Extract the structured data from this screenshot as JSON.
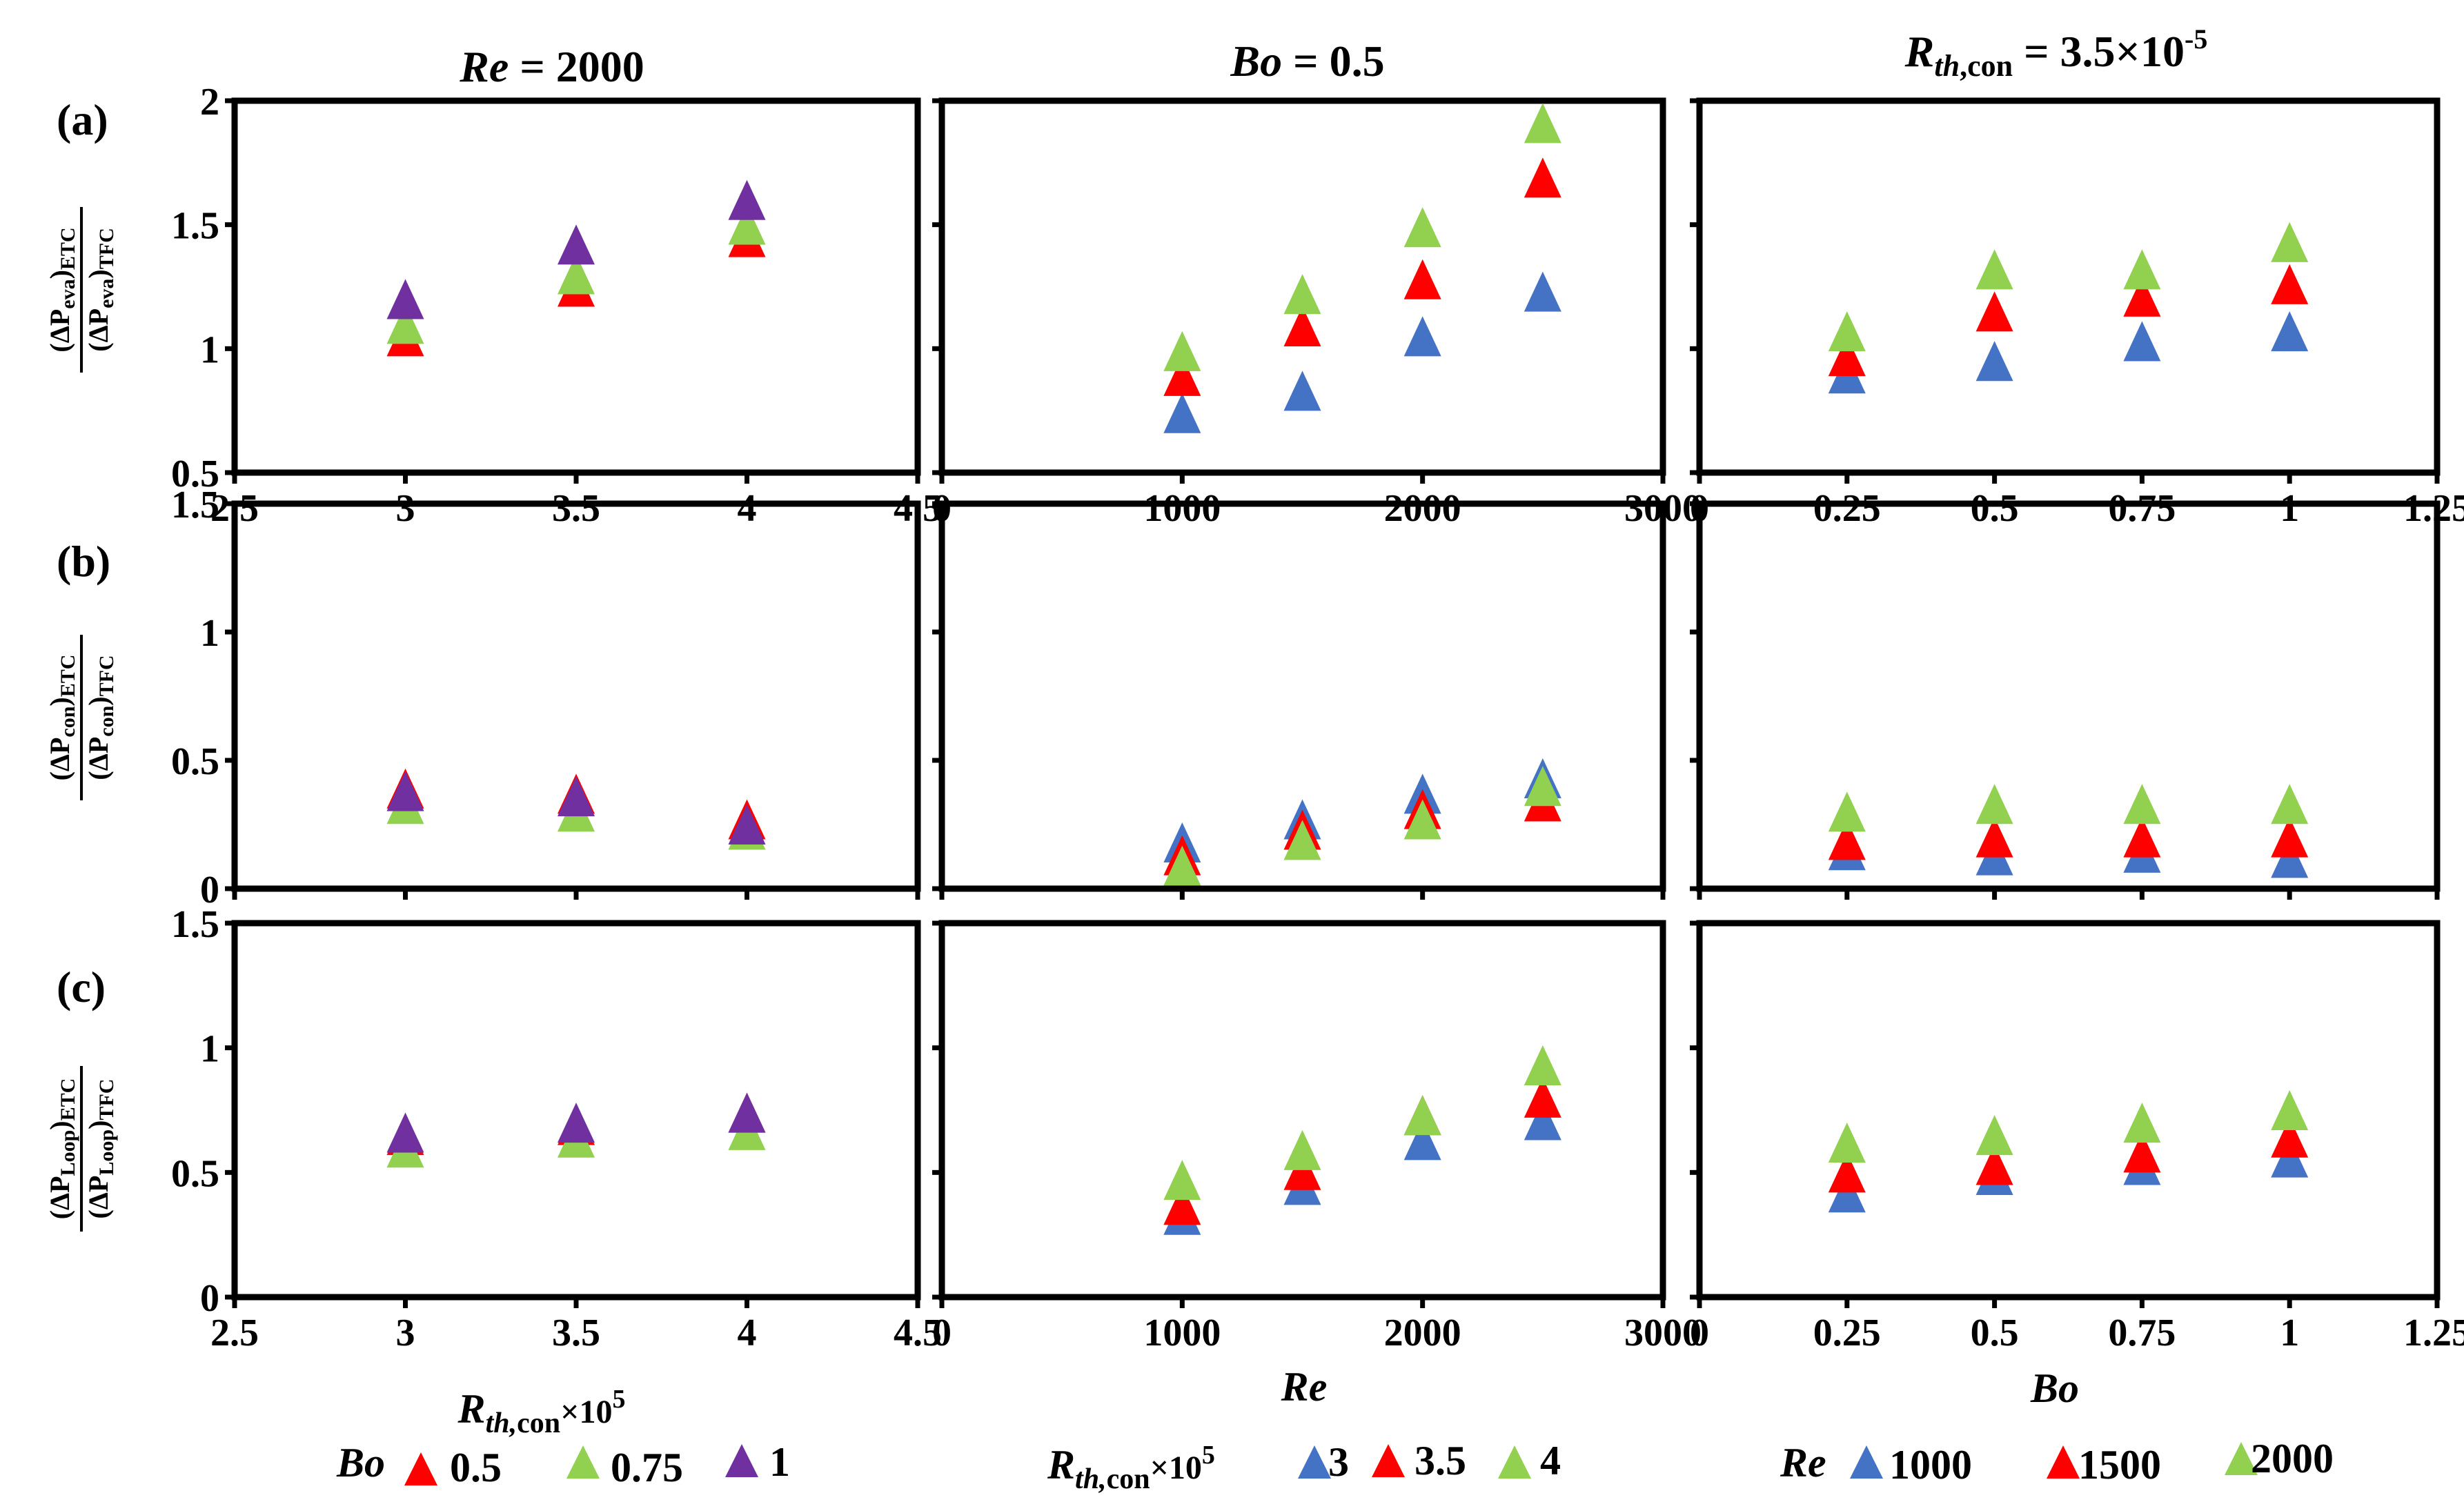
{
  "colors": {
    "red": "#ff0000",
    "green": "#92d050",
    "purple": "#7030a0",
    "blue": "#4472c4"
  },
  "column_titles": [
    {
      "var": "Re",
      "rest": " = 2000"
    },
    {
      "var": "Bo",
      "rest": " = 0.5"
    },
    {
      "var": "R",
      "sub": "th",
      "sub2": ",con",
      "rest": " = 3.5×10",
      "sup": "-5"
    }
  ],
  "row_labels": [
    "(a)",
    "(b)",
    "(c)"
  ],
  "row_ylabels": [
    {
      "num_pre": "(ΔP",
      "num_sub": "eva",
      "num_post": ")",
      "num_tail": "ETC",
      "den_pre": "(ΔP",
      "den_sub": "eva",
      "den_post": ")",
      "den_tail": "TFC"
    },
    {
      "num_pre": "(ΔP",
      "num_sub": "con",
      "num_post": ")",
      "num_tail": "ETC",
      "den_pre": "(ΔP",
      "den_sub": "con",
      "den_post": ")",
      "den_tail": "TFC"
    },
    {
      "num_pre": "(ΔP",
      "num_sub": "Loop",
      "num_post": ")",
      "num_tail": "ETC",
      "den_pre": "(ΔP",
      "den_sub": "Loop",
      "den_post": ")",
      "den_tail": "TFC"
    }
  ],
  "x_axis_labels": [
    {
      "main": "R",
      "sub": "th,",
      "sub2": "con",
      "post": "×10",
      "sup": "5"
    },
    {
      "main": "Re"
    },
    {
      "main": "Bo"
    }
  ],
  "legends": [
    {
      "title": "Bo",
      "items": [
        "0.5",
        "0.75",
        "1"
      ]
    },
    {
      "title": "R",
      "title_sub": "th,",
      "title_sub2": "con",
      "title_post": "×10",
      "title_sup": "5",
      "items": [
        "3",
        "3.5",
        "4"
      ]
    },
    {
      "title": "Re",
      "items": [
        "1000",
        "1500",
        "2000"
      ]
    }
  ],
  "chart_data": [
    {
      "type": "scatter",
      "row": "(a)",
      "column": 1,
      "xlim": [
        2.5,
        4.5
      ],
      "ylim": [
        0.5,
        2
      ],
      "xticks": [
        2.5,
        3,
        3.5,
        4,
        4.5
      ],
      "xtick_labels": [
        "2.5",
        "3",
        "3.5",
        "4",
        "4.5"
      ],
      "yticks": [
        0.5,
        1,
        1.5,
        2
      ],
      "ytick_labels": [
        "0.5",
        "1",
        "1.5",
        "2"
      ],
      "series": [
        {
          "name": "0.5",
          "color": "red",
          "x": [
            3,
            3.5,
            4
          ],
          "y": [
            1.05,
            1.25,
            1.45
          ]
        },
        {
          "name": "0.75",
          "color": "green",
          "x": [
            3,
            3.5,
            4
          ],
          "y": [
            1.1,
            1.3,
            1.5
          ]
        },
        {
          "name": "1",
          "color": "purple",
          "x": [
            3,
            3.5,
            4
          ],
          "y": [
            1.2,
            1.42,
            1.6
          ]
        }
      ]
    },
    {
      "type": "scatter",
      "row": "(a)",
      "column": 2,
      "xlim": [
        0,
        3000
      ],
      "ylim": [
        0.5,
        2
      ],
      "xticks": [
        0,
        1000,
        2000,
        3000
      ],
      "xtick_labels": [
        "0",
        "1000",
        "2000",
        "3000"
      ],
      "yticks": [
        0.5,
        1,
        1.5,
        2
      ],
      "ytick_labels": [],
      "series": [
        {
          "name": "3",
          "color": "blue",
          "x": [
            1000,
            1500,
            2000,
            2500
          ],
          "y": [
            0.74,
            0.83,
            1.05,
            1.23
          ]
        },
        {
          "name": "3.5",
          "color": "red",
          "x": [
            1000,
            1500,
            2000,
            2500
          ],
          "y": [
            0.89,
            1.09,
            1.28,
            1.69
          ]
        },
        {
          "name": "4",
          "color": "green",
          "x": [
            1000,
            1500,
            2000,
            2500
          ],
          "y": [
            0.99,
            1.22,
            1.49,
            1.91
          ]
        }
      ]
    },
    {
      "type": "scatter",
      "row": "(a)",
      "column": 3,
      "xlim": [
        0,
        1.25
      ],
      "ylim": [
        0.5,
        2
      ],
      "xticks": [
        0,
        0.25,
        0.5,
        0.75,
        1,
        1.25
      ],
      "xtick_labels": [
        "0",
        "0.25",
        "0.5",
        "0.75",
        "1",
        "1.25"
      ],
      "yticks": [
        0.5,
        1,
        1.5,
        2
      ],
      "ytick_labels": [],
      "series": [
        {
          "name": "1000",
          "color": "blue",
          "x": [
            0.25,
            0.5,
            0.75,
            1
          ],
          "y": [
            0.9,
            0.95,
            1.03,
            1.07
          ]
        },
        {
          "name": "1500",
          "color": "red",
          "x": [
            0.25,
            0.5,
            0.75,
            1
          ],
          "y": [
            0.97,
            1.15,
            1.21,
            1.26
          ]
        },
        {
          "name": "2000",
          "color": "green",
          "x": [
            0.25,
            0.5,
            0.75,
            1
          ],
          "y": [
            1.07,
            1.32,
            1.32,
            1.43
          ]
        }
      ]
    },
    {
      "type": "scatter",
      "row": "(b)",
      "column": 1,
      "xlim": [
        2.5,
        4.5
      ],
      "ylim": [
        0,
        1.5
      ],
      "xticks": [
        2.5,
        3,
        3.5,
        4,
        4.5
      ],
      "xtick_labels": [],
      "yticks": [
        0,
        0.5,
        1,
        1.5
      ],
      "ytick_labels": [
        "0",
        "0.5",
        "1",
        "1.5"
      ],
      "series": [
        {
          "name": "0.5",
          "color": "red",
          "x": [
            3,
            3.5,
            4
          ],
          "y": [
            0.39,
            0.37,
            0.27
          ]
        },
        {
          "name": "0.75",
          "color": "green",
          "x": [
            3,
            3.5,
            4
          ],
          "y": [
            0.33,
            0.3,
            0.23
          ]
        },
        {
          "name": "1",
          "color": "purple",
          "x": [
            3,
            3.5,
            4
          ],
          "y": [
            0.38,
            0.36,
            0.25
          ]
        }
      ]
    },
    {
      "type": "scatter",
      "row": "(b)",
      "column": 2,
      "xlim": [
        0,
        3000
      ],
      "ylim": [
        0,
        1.5
      ],
      "xticks": [
        0,
        1000,
        2000,
        3000
      ],
      "xtick_labels": [],
      "yticks": [
        0,
        0.5,
        1,
        1.5
      ],
      "ytick_labels": [],
      "series": [
        {
          "name": "3",
          "color": "blue",
          "x": [
            1000,
            1500,
            2000,
            2500
          ],
          "y": [
            0.18,
            0.27,
            0.37,
            0.43
          ]
        },
        {
          "name": "3.5",
          "color": "red",
          "x": [
            1000,
            1500,
            2000,
            2500
          ],
          "y": [
            0.13,
            0.23,
            0.31,
            0.34
          ]
        },
        {
          "name": "4",
          "color": "green",
          "x": [
            1000,
            1500,
            2000,
            2500
          ],
          "y": [
            0.09,
            0.19,
            0.27,
            0.4
          ]
        }
      ]
    },
    {
      "type": "scatter",
      "row": "(b)",
      "column": 3,
      "xlim": [
        0,
        1.25
      ],
      "ylim": [
        0,
        1.5
      ],
      "xticks": [
        0,
        0.25,
        0.5,
        0.75,
        1,
        1.25
      ],
      "xtick_labels": [],
      "yticks": [
        0,
        0.5,
        1,
        1.5
      ],
      "ytick_labels": [],
      "series": [
        {
          "name": "1000",
          "color": "blue",
          "x": [
            0.25,
            0.5,
            0.75,
            1
          ],
          "y": [
            0.15,
            0.13,
            0.14,
            0.12
          ]
        },
        {
          "name": "1500",
          "color": "red",
          "x": [
            0.25,
            0.5,
            0.75,
            1
          ],
          "y": [
            0.19,
            0.2,
            0.2,
            0.2
          ]
        },
        {
          "name": "2000",
          "color": "green",
          "x": [
            0.25,
            0.5,
            0.75,
            1
          ],
          "y": [
            0.3,
            0.33,
            0.33,
            0.33
          ]
        }
      ]
    },
    {
      "type": "scatter",
      "row": "(c)",
      "column": 1,
      "xlim": [
        2.5,
        4.5
      ],
      "ylim": [
        0,
        1.5
      ],
      "xticks": [
        2.5,
        3,
        3.5,
        4,
        4.5
      ],
      "xtick_labels": [
        "2.5",
        "3",
        "3.5",
        "4",
        "4.5"
      ],
      "yticks": [
        0,
        0.5,
        1,
        1.5
      ],
      "ytick_labels": [
        "0",
        "0.5",
        "1",
        "1.5"
      ],
      "series": [
        {
          "name": "0.5",
          "color": "red",
          "x": [
            3,
            3.5,
            4
          ],
          "y": [
            0.65,
            0.69,
            0.74
          ]
        },
        {
          "name": "0.75",
          "color": "green",
          "x": [
            3,
            3.5,
            4
          ],
          "y": [
            0.6,
            0.64,
            0.67
          ]
        },
        {
          "name": "1",
          "color": "purple",
          "x": [
            3,
            3.5,
            4
          ],
          "y": [
            0.66,
            0.7,
            0.74
          ]
        }
      ]
    },
    {
      "type": "scatter",
      "row": "(c)",
      "column": 2,
      "xlim": [
        0,
        3000
      ],
      "ylim": [
        0,
        1.5
      ],
      "xticks": [
        0,
        1000,
        2000,
        3000
      ],
      "xtick_labels": [
        "0",
        "1000",
        "2000",
        "3000"
      ],
      "yticks": [
        0,
        0.5,
        1,
        1.5
      ],
      "ytick_labels": [],
      "series": [
        {
          "name": "3",
          "color": "blue",
          "x": [
            1000,
            1500,
            2000,
            2500
          ],
          "y": [
            0.33,
            0.45,
            0.63,
            0.71
          ]
        },
        {
          "name": "3.5",
          "color": "red",
          "x": [
            1000,
            1500,
            2000,
            2500
          ],
          "y": [
            0.37,
            0.51,
            0.73,
            0.8
          ]
        },
        {
          "name": "4",
          "color": "green",
          "x": [
            1000,
            1500,
            2000,
            2500
          ],
          "y": [
            0.47,
            0.59,
            0.73,
            0.93
          ]
        }
      ]
    },
    {
      "type": "scatter",
      "row": "(c)",
      "column": 3,
      "xlim": [
        0,
        1.25
      ],
      "ylim": [
        0,
        1.5
      ],
      "xticks": [
        0,
        0.25,
        0.5,
        0.75,
        1,
        1.25
      ],
      "xtick_labels": [
        "0",
        "0.25",
        "0.5",
        "0.75",
        "1",
        "1.25"
      ],
      "yticks": [
        0,
        0.5,
        1,
        1.5
      ],
      "ytick_labels": [],
      "series": [
        {
          "name": "1000",
          "color": "blue",
          "x": [
            0.25,
            0.5,
            0.75,
            1
          ],
          "y": [
            0.42,
            0.49,
            0.53,
            0.56
          ]
        },
        {
          "name": "1500",
          "color": "red",
          "x": [
            0.25,
            0.5,
            0.75,
            1
          ],
          "y": [
            0.5,
            0.53,
            0.58,
            0.64
          ]
        },
        {
          "name": "2000",
          "color": "green",
          "x": [
            0.25,
            0.5,
            0.75,
            1
          ],
          "y": [
            0.62,
            0.65,
            0.7,
            0.75
          ]
        }
      ]
    }
  ]
}
